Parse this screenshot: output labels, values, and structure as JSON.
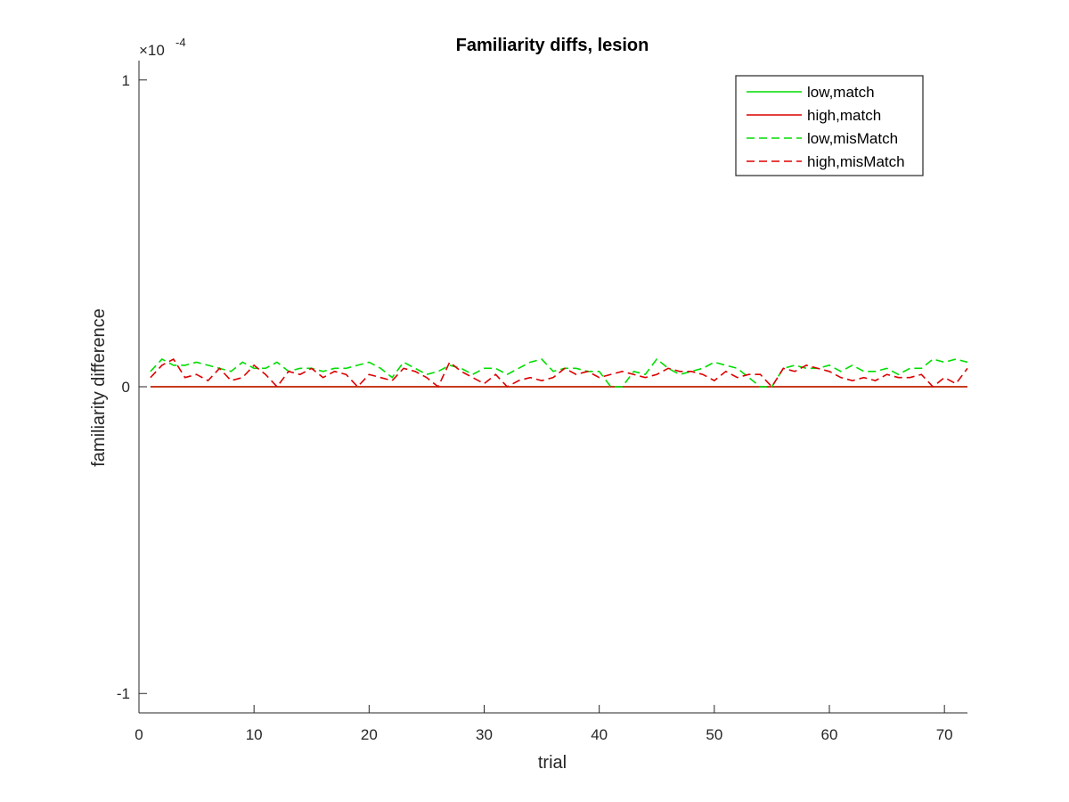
{
  "chart_data": {
    "type": "line",
    "title": "Familiarity diffs, lesion",
    "xlabel": "trial",
    "ylabel": "familiarity difference",
    "xlim": [
      0,
      72
    ],
    "ylim": [
      -1.0632,
      1.0632
    ],
    "xticks": [
      0,
      10,
      20,
      30,
      40,
      50,
      60,
      70
    ],
    "xtick_labels": [
      "0",
      "10",
      "20",
      "30",
      "40",
      "50",
      "60",
      "70"
    ],
    "yticks": [
      -1,
      0,
      1
    ],
    "ytick_labels": [
      "-1",
      "0",
      "1"
    ],
    "y_exponent": {
      "prefix": "×10",
      "power": "-4"
    },
    "grid": false,
    "legend_position": "top-right",
    "x": [
      1,
      2,
      3,
      4,
      5,
      6,
      7,
      8,
      9,
      10,
      11,
      12,
      13,
      14,
      15,
      16,
      17,
      18,
      19,
      20,
      21,
      22,
      23,
      24,
      25,
      26,
      27,
      28,
      29,
      30,
      31,
      32,
      33,
      34,
      35,
      36,
      37,
      38,
      39,
      40,
      41,
      42,
      43,
      44,
      45,
      46,
      47,
      48,
      49,
      50,
      51,
      52,
      53,
      54,
      55,
      56,
      57,
      58,
      59,
      60,
      61,
      62,
      63,
      64,
      65,
      66,
      67,
      68,
      69,
      70,
      71,
      72
    ],
    "series": [
      {
        "name": "low,match",
        "color": "#00dd00",
        "dash": "solid",
        "values": [
          0,
          0,
          0,
          0,
          0,
          0,
          0,
          0,
          0,
          0,
          0,
          0,
          0,
          0,
          0,
          0,
          0,
          0,
          0,
          0,
          0,
          0,
          0,
          0,
          0,
          0,
          0,
          0,
          0,
          0,
          0,
          0,
          0,
          0,
          0,
          0,
          0,
          0,
          0,
          0,
          0,
          0,
          0,
          0,
          0,
          0,
          0,
          0,
          0,
          0,
          0,
          0,
          0,
          0,
          0,
          0,
          0,
          0,
          0,
          0,
          0,
          0,
          0,
          0,
          0,
          0,
          0,
          0,
          0,
          0,
          0,
          0
        ]
      },
      {
        "name": "high,match",
        "color": "#dd0000",
        "dash": "solid",
        "values": [
          0,
          0,
          0,
          0,
          0,
          0,
          0,
          0,
          0,
          0,
          0,
          0,
          0,
          0,
          0,
          0,
          0,
          0,
          0,
          0,
          0,
          0,
          0,
          0,
          0,
          0,
          0,
          0,
          0,
          0,
          0,
          0,
          0,
          0,
          0,
          0,
          0,
          0,
          0,
          0,
          0,
          0,
          0,
          0,
          0,
          0,
          0,
          0,
          0,
          0,
          0,
          0,
          0,
          0,
          0,
          0,
          0,
          0,
          0,
          0,
          0,
          0,
          0,
          0,
          0,
          0,
          0,
          0,
          0,
          0,
          0,
          0
        ]
      },
      {
        "name": "low,misMatch",
        "color": "#00dd00",
        "dash": "dashed",
        "values": [
          0.05,
          0.09,
          0.07,
          0.07,
          0.08,
          0.07,
          0.06,
          0.05,
          0.08,
          0.06,
          0.06,
          0.08,
          0.05,
          0.06,
          0.06,
          0.05,
          0.06,
          0.06,
          0.07,
          0.08,
          0.06,
          0.03,
          0.08,
          0.06,
          0.04,
          0.05,
          0.07,
          0.06,
          0.04,
          0.06,
          0.06,
          0.04,
          0.06,
          0.08,
          0.09,
          0.05,
          0.06,
          0.06,
          0.05,
          0.05,
          0.0,
          0.0,
          0.05,
          0.04,
          0.09,
          0.06,
          0.04,
          0.05,
          0.06,
          0.08,
          0.07,
          0.06,
          0.03,
          0.0,
          0.0,
          0.06,
          0.07,
          0.06,
          0.06,
          0.07,
          0.05,
          0.07,
          0.05,
          0.05,
          0.06,
          0.04,
          0.06,
          0.06,
          0.09,
          0.08,
          0.09,
          0.08
        ]
      },
      {
        "name": "high,misMatch",
        "color": "#dd0000",
        "dash": "dashed",
        "values": [
          0.03,
          0.07,
          0.09,
          0.03,
          0.04,
          0.02,
          0.06,
          0.02,
          0.03,
          0.07,
          0.04,
          0.0,
          0.05,
          0.04,
          0.06,
          0.03,
          0.05,
          0.04,
          0.0,
          0.04,
          0.03,
          0.02,
          0.06,
          0.05,
          0.03,
          0.0,
          0.08,
          0.05,
          0.03,
          0.01,
          0.04,
          0.0,
          0.02,
          0.03,
          0.02,
          0.03,
          0.06,
          0.04,
          0.05,
          0.03,
          0.04,
          0.05,
          0.04,
          0.03,
          0.04,
          0.06,
          0.05,
          0.05,
          0.04,
          0.02,
          0.05,
          0.03,
          0.04,
          0.04,
          0.0,
          0.06,
          0.05,
          0.07,
          0.06,
          0.05,
          0.03,
          0.02,
          0.03,
          0.02,
          0.04,
          0.03,
          0.03,
          0.04,
          0.0,
          0.03,
          0.01,
          0.06
        ]
      }
    ]
  }
}
